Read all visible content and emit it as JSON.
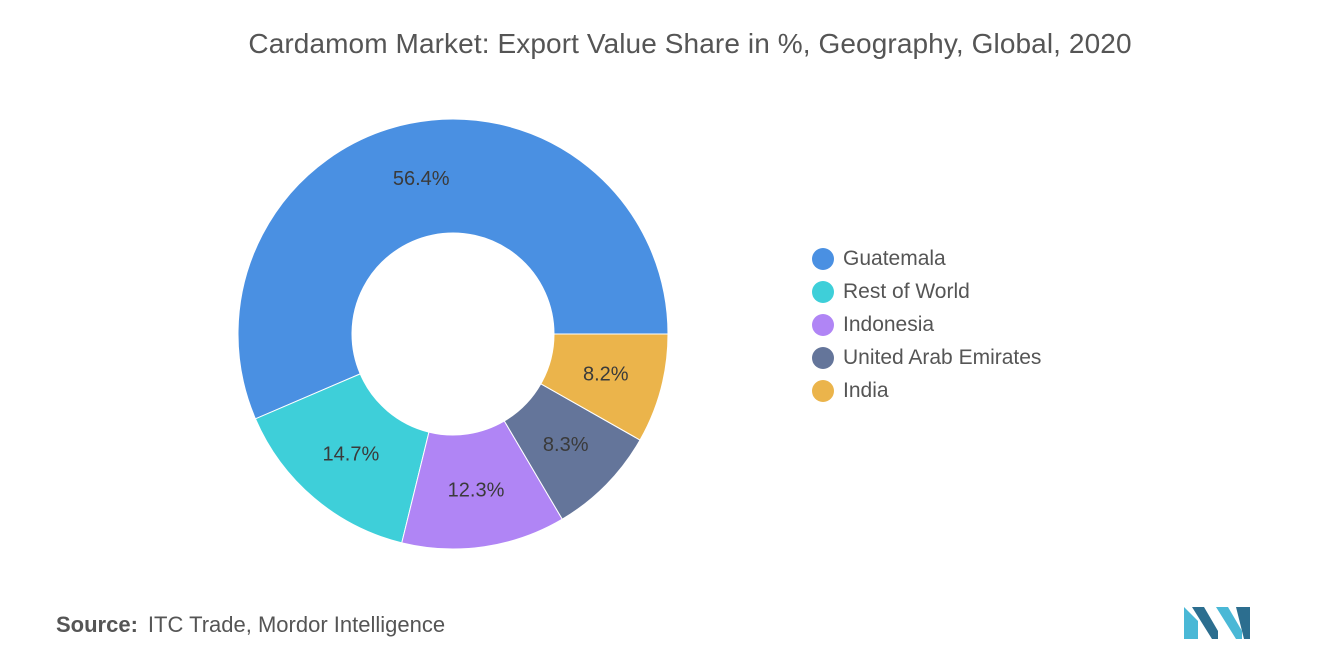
{
  "title": "Cardamom Market: Export Value Share in %, Geography, Global, 2020",
  "chart_data": {
    "type": "pie",
    "title": "Cardamom Market: Export Value Share in %, Geography, Global, 2020",
    "variant": "donut",
    "categories": [
      "Guatemala",
      "Rest of World",
      "Indonesia",
      "United Arab Emirates",
      "India"
    ],
    "values": [
      56.4,
      14.7,
      12.3,
      8.3,
      8.2
    ],
    "value_labels": [
      "56.4%",
      "14.7%",
      "12.3%",
      "8.3%",
      "8.2%"
    ],
    "colors": [
      "#4a90e2",
      "#3ecfd9",
      "#b085f5",
      "#64759a",
      "#ebb44b"
    ],
    "unit": "%",
    "legend_position": "right"
  },
  "legend": {
    "items": [
      {
        "label": "Guatemala",
        "color": "#4a90e2"
      },
      {
        "label": "Rest of World",
        "color": "#3ecfd9"
      },
      {
        "label": "Indonesia",
        "color": "#b085f5"
      },
      {
        "label": "United Arab Emirates",
        "color": "#64759a"
      },
      {
        "label": "India",
        "color": "#ebb44b"
      }
    ]
  },
  "source": {
    "label": "Source:",
    "text": "ITC Trade, Mordor Intelligence"
  },
  "logo": {
    "icon": "mordor-intelligence-logo-icon",
    "colors": [
      "#4ab8d6",
      "#2c6e8f"
    ]
  }
}
